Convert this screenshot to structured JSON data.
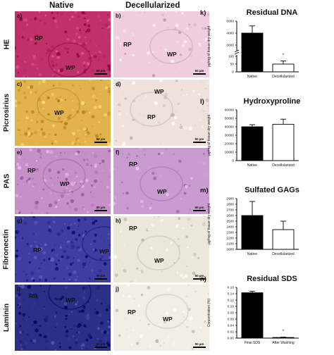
{
  "columns": {
    "native": "Native",
    "decell": "Decellularized"
  },
  "rows": [
    {
      "stain": "HE",
      "left": {
        "letter": "a)",
        "regions": [
          "RP",
          "WP"
        ],
        "scale": "50 µm"
      },
      "right": {
        "letter": "b)",
        "regions": [
          "RP",
          "WP"
        ],
        "scale": "50 µm"
      }
    },
    {
      "stain": "Picrosirius",
      "left": {
        "letter": "c)",
        "regions": [
          "WP"
        ],
        "scale": "50 µm"
      },
      "right": {
        "letter": "d)",
        "regions": [
          "WP",
          "RP"
        ],
        "scale": "50 µm"
      }
    },
    {
      "stain": "PAS",
      "left": {
        "letter": "e)",
        "regions": [
          "RP",
          "WP"
        ],
        "scale": "50 µm"
      },
      "right": {
        "letter": "f)",
        "regions": [
          "RP",
          "WP"
        ],
        "scale": "50 µm"
      }
    },
    {
      "stain": "Fibronectin",
      "left": {
        "letter": "g)",
        "regions": [
          "RP",
          "WP"
        ],
        "scale": "50 µm"
      },
      "right": {
        "letter": "h)",
        "regions": [
          "RP",
          "WP"
        ],
        "scale": "50 µm"
      }
    },
    {
      "stain": "Laminin",
      "left": {
        "letter": "i)",
        "regions": [
          "RP",
          "WP"
        ],
        "scale": "50 µm"
      },
      "right": {
        "letter": "j)",
        "regions": [
          "RP",
          "WP"
        ],
        "scale": "50 µm"
      }
    }
  ],
  "tissue_colors": {
    "HE_native": "#c0306a",
    "HE_decell": "#f0cde0",
    "Picro_native": "#e2b24c",
    "Picro_decell": "#efe2dc",
    "PAS_native": "#c78fc8",
    "PAS_decell": "#c99bd0",
    "Fibro_native": "#3f3ea0",
    "Fibro_decell": "#ece7da",
    "Lam_native": "#2b2f86",
    "Lam_decell": "#f1eee6"
  },
  "chart_data": [
    {
      "panel_label": "k)",
      "title": "Residual DNA",
      "type": "bar",
      "categories": [
        "Native",
        "Decellularized"
      ],
      "values": [
        4000,
        50
      ],
      "errors": [
        600,
        20
      ],
      "ylabel": "µg/mg of tissue dry weight",
      "yticks": [
        "0",
        "50",
        "100",
        "3000",
        "4000",
        "5000"
      ],
      "broken_axis": true,
      "asterisk": "*",
      "asterisk_on": 1,
      "bar_fill": [
        "#000000",
        "#ffffff"
      ]
    },
    {
      "panel_label": "l)",
      "title": "Hydroxyproline",
      "type": "bar",
      "categories": [
        "Native",
        "Decellularized"
      ],
      "values": [
        40000,
        43000
      ],
      "errors": [
        2500,
        6000
      ],
      "ylabel": "µg/mg of tissue dry weight",
      "yticks": [
        "0",
        "10000",
        "20000",
        "30000",
        "40000",
        "50000",
        "60000"
      ],
      "ylim": [
        0,
        60000
      ],
      "bar_fill": [
        "#000000",
        "#ffffff"
      ]
    },
    {
      "panel_label": "m)",
      "title": "Sulfated GAGs",
      "type": "bar",
      "categories": [
        "Native",
        "Decellularized"
      ],
      "values": [
        2600,
        2350
      ],
      "errors": [
        250,
        150
      ],
      "ylabel": "µg/mg of tissue dry weight",
      "yticks": [
        "2000",
        "2100",
        "2200",
        "2300",
        "2400",
        "2500",
        "2600",
        "2700",
        "2800",
        "2900"
      ],
      "ylim": [
        2000,
        2900
      ],
      "bar_fill": [
        "#000000",
        "#ffffff"
      ]
    },
    {
      "panel_label": "n)",
      "title": "Residual SDS",
      "type": "bar",
      "categories": [
        "Final SDS",
        "After Washing"
      ],
      "values": [
        0.143,
        0.002
      ],
      "errors": [
        0.005,
        0.001
      ],
      "ylabel": "Concentration (%)",
      "yticks": [
        "0.00",
        "0.02",
        "0.04",
        "0.06",
        "0.08",
        "0.10",
        "0.12",
        "0.14",
        "0.16"
      ],
      "ylim": [
        0,
        0.16
      ],
      "asterisk": "*",
      "asterisk_on": 1,
      "bar_fill": [
        "#000000",
        "#ffffff"
      ]
    }
  ]
}
